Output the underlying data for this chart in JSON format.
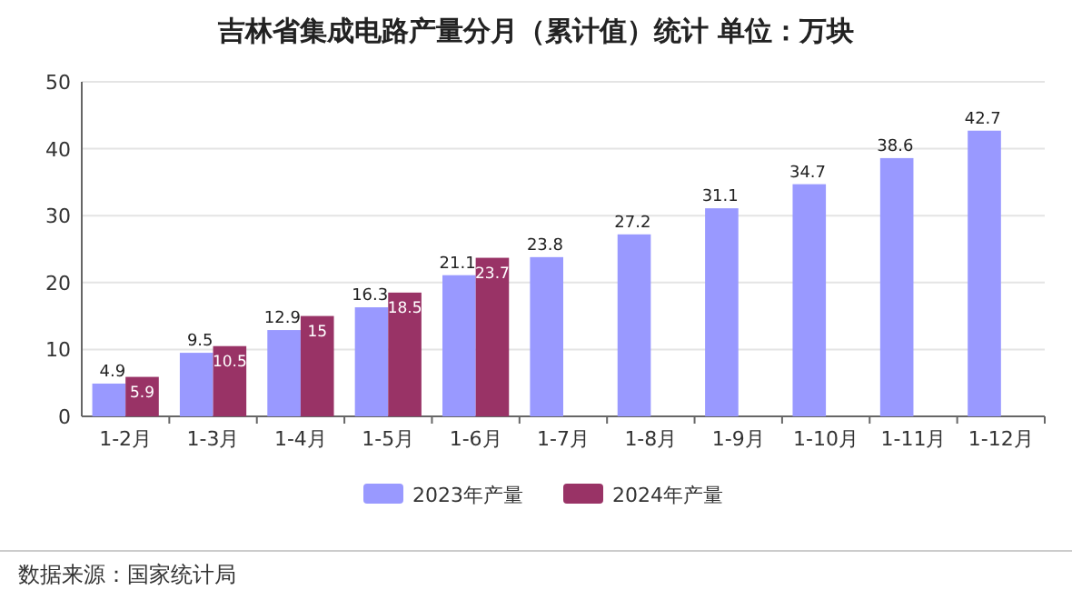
{
  "chart_data": {
    "type": "bar",
    "title": "吉林省集成电路产量分月（累计值）统计 单位：万块",
    "categories": [
      "1-2月",
      "1-3月",
      "1-4月",
      "1-5月",
      "1-6月",
      "1-7月",
      "1-8月",
      "1-9月",
      "1-10月",
      "1-11月",
      "1-12月"
    ],
    "series": [
      {
        "name": "2023年产量",
        "color": "#9999ff",
        "values": [
          4.9,
          9.5,
          12.9,
          16.3,
          21.1,
          23.8,
          27.2,
          31.1,
          34.7,
          38.6,
          42.7
        ]
      },
      {
        "name": "2024年产量",
        "color": "#993366",
        "values": [
          5.9,
          10.5,
          15,
          18.5,
          23.7,
          null,
          null,
          null,
          null,
          null,
          null
        ]
      }
    ],
    "ylim": [
      0,
      50
    ],
    "yticks": [
      0,
      10,
      20,
      30,
      40,
      50
    ],
    "grid": "y",
    "legend": "bottom",
    "data_labels": true,
    "annotations": [
      "数据来源：国家统计局"
    ]
  }
}
